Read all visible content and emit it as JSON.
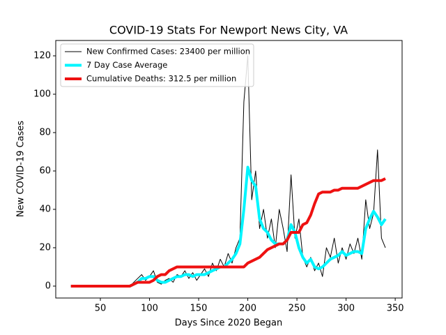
{
  "chart_data": {
    "type": "line",
    "title": "COVID-19 Stats For Newport News City, VA",
    "x_label": "Days Since 2020 Began",
    "y_label": "New COVID-19 Cases",
    "x": [
      20,
      24,
      28,
      32,
      36,
      40,
      44,
      48,
      52,
      56,
      60,
      64,
      68,
      72,
      76,
      80,
      84,
      88,
      92,
      96,
      100,
      104,
      108,
      112,
      116,
      120,
      124,
      128,
      132,
      136,
      140,
      144,
      148,
      152,
      156,
      160,
      164,
      168,
      172,
      176,
      180,
      184,
      188,
      192,
      196,
      200,
      204,
      208,
      212,
      216,
      220,
      224,
      228,
      232,
      236,
      240,
      244,
      248,
      252,
      256,
      260,
      264,
      268,
      272,
      276,
      280,
      284,
      288,
      292,
      296,
      300,
      304,
      308,
      312,
      316,
      320,
      324,
      328,
      332,
      336,
      340
    ],
    "series": [
      {
        "name": "New Confirmed Cases: 23400 per million",
        "color": "#000000",
        "width": 1,
        "values": [
          0,
          0,
          0,
          0,
          0,
          0,
          0,
          0,
          0,
          0,
          0,
          0,
          0,
          0,
          0,
          0,
          2,
          4,
          6,
          3,
          5,
          8,
          2,
          1,
          3,
          4,
          2,
          6,
          5,
          8,
          4,
          7,
          3,
          6,
          9,
          5,
          12,
          8,
          14,
          10,
          17,
          12,
          20,
          25,
          96,
          120,
          45,
          60,
          30,
          40,
          25,
          35,
          20,
          40,
          30,
          18,
          58,
          25,
          35,
          15,
          10,
          15,
          8,
          12,
          5,
          20,
          15,
          25,
          12,
          20,
          14,
          22,
          17,
          25,
          14,
          45,
          30,
          38,
          71,
          25,
          20
        ]
      },
      {
        "name": "7 Day Case Average",
        "color": "#00f5ff",
        "width": 4,
        "values": [
          0,
          0,
          0,
          0,
          0,
          0,
          0,
          0,
          0,
          0,
          0,
          0,
          0,
          0,
          0,
          0,
          1,
          2,
          4,
          4,
          5,
          5,
          3,
          2,
          2,
          3,
          4,
          5,
          5,
          6,
          6,
          5,
          6,
          6,
          6,
          7,
          8,
          9,
          10,
          10,
          12,
          14,
          17,
          22,
          40,
          62,
          55,
          52,
          35,
          30,
          28,
          24,
          22,
          22,
          22,
          24,
          32,
          28,
          20,
          15,
          12,
          14,
          10,
          9,
          10,
          12,
          14,
          15,
          16,
          18,
          16,
          17,
          18,
          18,
          17,
          30,
          35,
          39,
          36,
          32,
          35
        ]
      },
      {
        "name": "Cumulative Deaths: 312.5 per million",
        "color": "#ee1111",
        "width": 4,
        "values": [
          0,
          0,
          0,
          0,
          0,
          0,
          0,
          0,
          0,
          0,
          0,
          0,
          0,
          0,
          0,
          0,
          1,
          2,
          2,
          2,
          2,
          3,
          5,
          6,
          6,
          8,
          9,
          10,
          10,
          10,
          10,
          10,
          10,
          10,
          10,
          10,
          10,
          10,
          10,
          10,
          10,
          10,
          10,
          10,
          10,
          12,
          13,
          14,
          15,
          17,
          19,
          20,
          21,
          22,
          22,
          24,
          28,
          28,
          28,
          32,
          33,
          37,
          43,
          48,
          49,
          49,
          49,
          50,
          50,
          51,
          51,
          51,
          51,
          51,
          52,
          53,
          54,
          55,
          55,
          55,
          56
        ]
      }
    ],
    "xlim": [
      4.6,
      357
    ],
    "ylim": [
      -6.2,
      128
    ],
    "xticks": [
      50,
      100,
      150,
      200,
      250,
      300,
      350
    ],
    "yticks": [
      0,
      20,
      40,
      60,
      80,
      100,
      120
    ],
    "legend": "upper left",
    "grid": false
  }
}
